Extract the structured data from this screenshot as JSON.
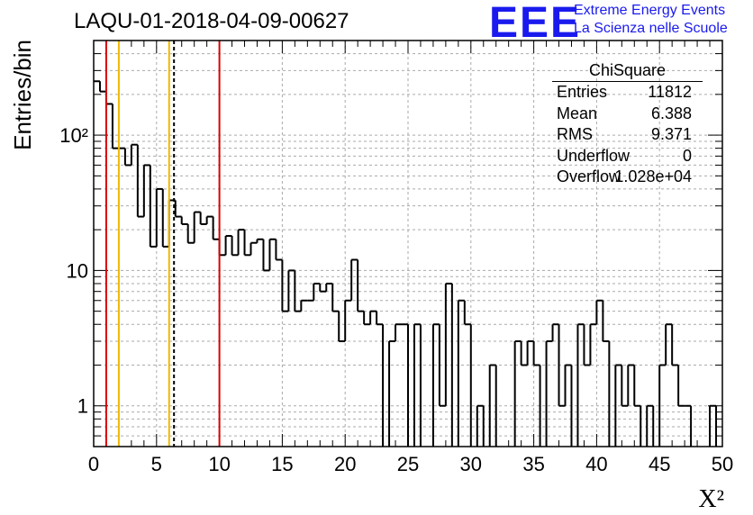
{
  "header": {
    "title": "LAQU-01-2018-04-09-00627",
    "logo_text": "EEE",
    "brand_line1": "Extreme Energy Events",
    "brand_line2": "La Scienza nelle Scuole"
  },
  "stats": {
    "title": "ChiSquare",
    "rows": [
      {
        "label": "Entries",
        "value": "11812"
      },
      {
        "label": "Mean",
        "value": "6.388"
      },
      {
        "label": "RMS",
        "value": "9.371"
      },
      {
        "label": "Underflow",
        "value": "0"
      },
      {
        "label": "Overflow",
        "value": "1.028e+04"
      }
    ]
  },
  "colors": {
    "histogram": "#000000",
    "red_line": "#dd0000",
    "yellow_line": "#f0b800",
    "grid": "#aaaaaa",
    "logo": "#1a1aee"
  },
  "chart_data": {
    "type": "histogram",
    "xlabel": "X²",
    "ylabel": "Entries/bin",
    "xlim": [
      0,
      50
    ],
    "ylim": [
      0.5,
      500
    ],
    "log_y": true,
    "grid": true,
    "bin_width": 0.5,
    "x_ticks": [
      "0",
      "5",
      "10",
      "15",
      "20",
      "25",
      "30",
      "35",
      "40",
      "45",
      "50"
    ],
    "y_ticks": [
      {
        "value": 1,
        "label": "1"
      },
      {
        "value": 10,
        "label": "10"
      },
      {
        "value": 100,
        "label": "10²"
      }
    ],
    "values": [
      250,
      210,
      170,
      80,
      80,
      60,
      85,
      25,
      60,
      15,
      40,
      15,
      33,
      25,
      22,
      16,
      27,
      22,
      25,
      17,
      13,
      18,
      13,
      20,
      13,
      16,
      17,
      10,
      17,
      12,
      5,
      10,
      5,
      6,
      6,
      8,
      7,
      8,
      5,
      3,
      6,
      12,
      5,
      4,
      5,
      4,
      0,
      3,
      4,
      4,
      0,
      4,
      0,
      0,
      4,
      1,
      8,
      0,
      6,
      4,
      0,
      1,
      0,
      2,
      0,
      0,
      0,
      3,
      2,
      3,
      2,
      0,
      3,
      4,
      1,
      2,
      0,
      4,
      2,
      4,
      6,
      3,
      0,
      2,
      1,
      2,
      1,
      0,
      1,
      0,
      2,
      4,
      2,
      1,
      1,
      0,
      0,
      0,
      1,
      0
    ],
    "vertical_lines": [
      {
        "x": 1,
        "color": "red",
        "style": "solid"
      },
      {
        "x": 2,
        "color": "yellow",
        "style": "solid"
      },
      {
        "x": 6,
        "color": "yellow",
        "style": "solid"
      },
      {
        "x": 6.388,
        "color": "black",
        "style": "dashed"
      },
      {
        "x": 10,
        "color": "red",
        "style": "solid"
      }
    ]
  }
}
